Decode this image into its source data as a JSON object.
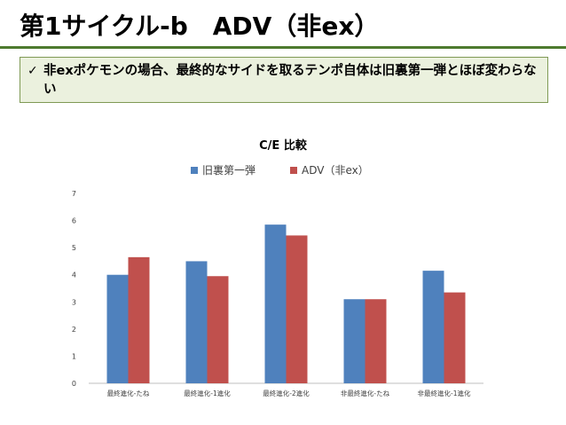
{
  "slide": {
    "title": "第1サイクル-b　ADV（非ex）",
    "note_check": "✓",
    "note_text": "非exポケモンの場合、最終的なサイドを取るテンポ自体は旧裏第一弾とほぼ変わらない"
  },
  "chart_data": {
    "type": "bar",
    "title": "C/E 比較",
    "categories": [
      "最終進化-たね",
      "最終進化-1進化",
      "最終進化-2進化",
      "非最終進化-たね",
      "非最終進化-1進化"
    ],
    "series": [
      {
        "name": "旧裏第一弾",
        "color": "#4f81bd",
        "values": [
          4.0,
          4.5,
          5.85,
          3.1,
          4.15
        ]
      },
      {
        "name": "ADV（非ex）",
        "color": "#c0504d",
        "values": [
          4.65,
          3.95,
          5.45,
          3.1,
          3.35
        ]
      }
    ],
    "yticks": [
      "0",
      "1",
      "2",
      "3",
      "4",
      "5",
      "6",
      "7"
    ],
    "ylim": [
      0,
      7
    ],
    "grid": false,
    "legend": "top"
  }
}
